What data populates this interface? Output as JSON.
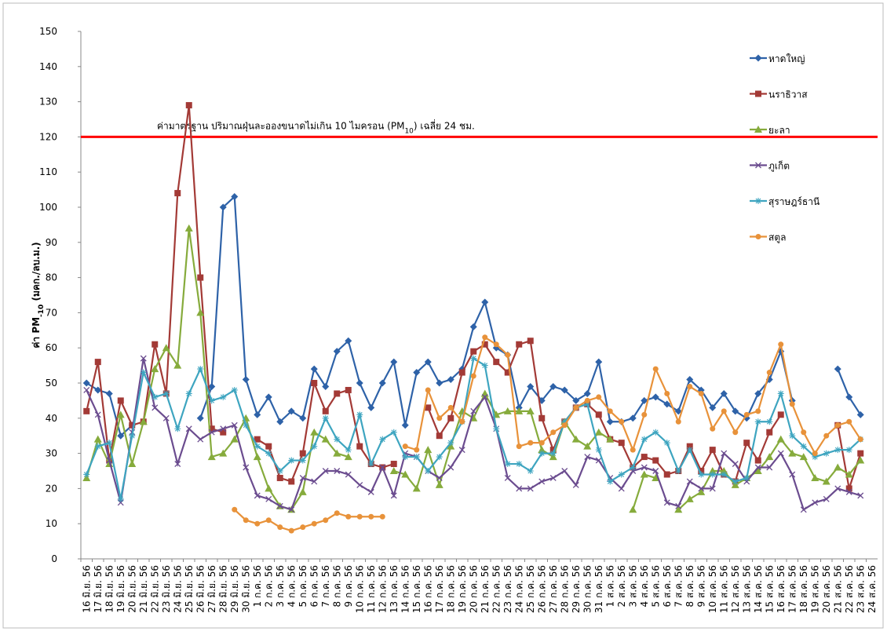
{
  "chart_data": {
    "type": "line",
    "y_label_parts": [
      {
        "text": "ค่า PM"
      },
      {
        "text": "-10",
        "sub": true
      },
      {
        "text": " (มคก./ลบ.ม.)"
      }
    ],
    "annotation_parts": [
      {
        "text": "ค่ามาตรฐาน ปริมาณฝุ่นละอองขนาดไม่เกิน 10 ไมครอน (PM"
      },
      {
        "text": "10",
        "sub": true
      },
      {
        "text": ") เฉลี่ย 24 ชม."
      }
    ],
    "reference_line": {
      "value": 120,
      "color": "#ff0000"
    },
    "legend": "right",
    "categories": [
      "16 มิ.ย. 56",
      "17 มิ.ย. 56",
      "18 มิ.ย. 56",
      "19 มิ.ย. 56",
      "20 มิ.ย. 56",
      "21 มิ.ย. 56",
      "22 มิ.ย. 56",
      "23 มิ.ย. 56",
      "24 มิ.ย. 56",
      "25 มิ.ย. 56",
      "26 มิ.ย. 56",
      "27 มิ.ย. 56",
      "28 มิ.ย. 56",
      "29 มิ.ย. 56",
      "30 มิ.ย. 56",
      "1 ก.ค. 56",
      "2 ก.ค. 56",
      "3 ก.ค. 56",
      "4 ก.ค. 56",
      "5 ก.ค. 56",
      "6 ก.ค. 56",
      "7 ก.ค. 56",
      "8 ก.ค. 56",
      "9 ก.ค. 56",
      "10 ก.ค. 56",
      "11 ก.ค. 56",
      "12 ก.ค. 56",
      "13 ก.ค. 56",
      "14 ก.ค. 56",
      "15 ก.ค. 56",
      "16 ก.ค. 56",
      "17 ก.ค. 56",
      "18 ก.ค. 56",
      "19 ก.ค. 56",
      "20 ก.ค. 56",
      "21 ก.ค. 56",
      "22 ก.ค. 56",
      "23 ก.ค. 56",
      "24 ก.ค. 56",
      "25 ก.ค. 56",
      "26 ก.ค. 56",
      "27 ก.ค. 56",
      "28 ก.ค. 56",
      "29 ก.ค. 56",
      "30 ก.ค. 56",
      "31 ก.ค. 56",
      "1 ส.ค. 56",
      "2 ส.ค. 56",
      "3 ส.ค. 56",
      "4 ส.ค. 56",
      "5 ส.ค. 56",
      "6 ส.ค. 56",
      "7 ส.ค. 56",
      "8 ส.ค. 56",
      "9 ส.ค. 56",
      "10 ส.ค. 56",
      "11 ส.ค. 56",
      "12 ส.ค. 56",
      "13 ส.ค. 56",
      "14 ส.ค. 56",
      "15 ส.ค. 56",
      "16 ส.ค. 56",
      "17 ส.ค. 56",
      "18 ส.ค. 56",
      "19 ส.ค. 56",
      "20 ส.ค. 56",
      "21 ส.ค. 56",
      "22 ส.ค. 56",
      "23 ส.ค. 56",
      "24 ส.ค. 56"
    ],
    "series": [
      {
        "name": "หาดใหญ่",
        "color": "#2e62a8",
        "marker": "diamond",
        "values": [
          50,
          48,
          47,
          35,
          38,
          null,
          null,
          null,
          null,
          null,
          40,
          49,
          100,
          103,
          51,
          41,
          46,
          39,
          42,
          40,
          54,
          49,
          59,
          62,
          50,
          43,
          50,
          56,
          38,
          53,
          56,
          50,
          51,
          54,
          66,
          73,
          60,
          58,
          43,
          49,
          45,
          49,
          48,
          45,
          47,
          56,
          39,
          39,
          40,
          45,
          46,
          44,
          42,
          51,
          48,
          43,
          47,
          42,
          40,
          47,
          51,
          59,
          45,
          null,
          null,
          null,
          54,
          46,
          41,
          null
        ]
      },
      {
        "name": "นราธิวาส",
        "color": "#a33a36",
        "marker": "square",
        "values": [
          42,
          56,
          28,
          45,
          38,
          39,
          61,
          47,
          104,
          129,
          80,
          37,
          36,
          null,
          null,
          34,
          32,
          23,
          22,
          30,
          50,
          42,
          47,
          48,
          32,
          27,
          26,
          27,
          null,
          null,
          43,
          35,
          40,
          53,
          59,
          61,
          56,
          53,
          61,
          62,
          40,
          31,
          39,
          43,
          44,
          41,
          34,
          33,
          26,
          29,
          28,
          24,
          25,
          32,
          25,
          31,
          24,
          22,
          33,
          28,
          36,
          41,
          null,
          null,
          null,
          null,
          38,
          20,
          30,
          null
        ]
      },
      {
        "name": "ยะลา",
        "color": "#86ab3c",
        "marker": "triangle",
        "values": [
          23,
          34,
          27,
          41,
          27,
          39,
          54,
          60,
          55,
          94,
          70,
          29,
          30,
          34,
          40,
          29,
          20,
          15,
          14,
          19,
          36,
          34,
          30,
          29,
          null,
          null,
          null,
          25,
          24,
          20,
          31,
          21,
          32,
          42,
          40,
          47,
          41,
          42,
          42,
          42,
          31,
          29,
          39,
          34,
          32,
          36,
          34,
          null,
          14,
          24,
          23,
          null,
          14,
          17,
          19,
          25,
          25,
          21,
          23,
          25,
          29,
          34,
          30,
          29,
          23,
          22,
          26,
          24,
          28,
          null
        ]
      },
      {
        "name": "ภูเก็ต",
        "color": "#6b4c8f",
        "marker": "x",
        "values": [
          48,
          41,
          28,
          16,
          36,
          57,
          43,
          40,
          27,
          37,
          34,
          36,
          37,
          38,
          26,
          18,
          17,
          15,
          14,
          23,
          22,
          25,
          25,
          24,
          21,
          19,
          26,
          18,
          30,
          29,
          25,
          23,
          26,
          31,
          42,
          46,
          37,
          23,
          20,
          20,
          22,
          23,
          25,
          21,
          29,
          28,
          23,
          20,
          25,
          26,
          25,
          16,
          15,
          22,
          20,
          20,
          30,
          27,
          22,
          26,
          26,
          30,
          24,
          14,
          16,
          17,
          20,
          19,
          18,
          null
        ]
      },
      {
        "name": "สุราษฎร์ธานี",
        "color": "#3ea5c0",
        "marker": "star",
        "values": [
          24,
          32,
          33,
          17,
          35,
          53,
          46,
          47,
          37,
          47,
          54,
          45,
          46,
          48,
          38,
          32,
          30,
          25,
          28,
          28,
          32,
          40,
          34,
          31,
          41,
          27,
          34,
          36,
          29,
          29,
          25,
          29,
          33,
          39,
          57,
          55,
          37,
          27,
          27,
          25,
          30,
          30,
          39,
          43,
          44,
          31,
          22,
          24,
          26,
          34,
          36,
          33,
          25,
          31,
          24,
          24,
          24,
          22,
          23,
          39,
          39,
          47,
          35,
          32,
          29,
          30,
          31,
          31,
          34,
          null
        ]
      },
      {
        "name": "สตูล",
        "color": "#e8923a",
        "marker": "circle",
        "values": [
          null,
          null,
          null,
          null,
          null,
          null,
          null,
          null,
          null,
          null,
          null,
          null,
          null,
          14,
          11,
          10,
          11,
          9,
          8,
          9,
          10,
          11,
          13,
          12,
          12,
          12,
          12,
          null,
          32,
          31,
          48,
          40,
          43,
          39,
          52,
          63,
          61,
          58,
          32,
          33,
          33,
          36,
          38,
          43,
          45,
          46,
          42,
          39,
          31,
          41,
          54,
          47,
          39,
          49,
          47,
          37,
          42,
          36,
          41,
          42,
          53,
          61,
          44,
          36,
          30,
          35,
          38,
          39,
          34,
          null
        ]
      }
    ],
    "ylim": [
      0,
      150
    ],
    "yticks": [
      0,
      10,
      20,
      30,
      40,
      50,
      60,
      70,
      80,
      90,
      100,
      110,
      120,
      130,
      140,
      150
    ],
    "grid": false
  }
}
